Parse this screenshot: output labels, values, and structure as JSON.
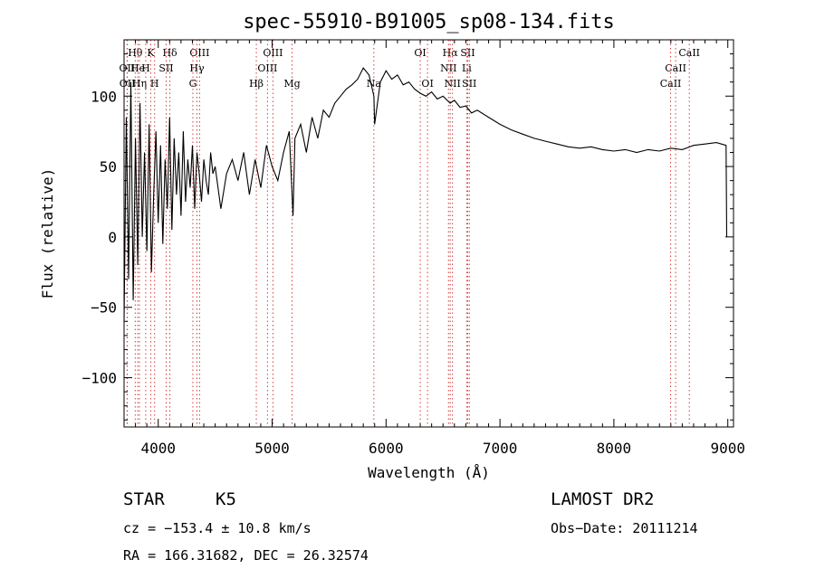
{
  "chart_data": {
    "type": "line",
    "title": "spec-55910-B91005_sp08-134.fits",
    "xlabel": "Wavelength (Å)",
    "ylabel": "Flux (relative)",
    "xlim": [
      3700,
      9050
    ],
    "ylim": [
      -135,
      140
    ],
    "xticks": [
      4000,
      5000,
      6000,
      7000,
      8000,
      9000
    ],
    "yticks": [
      -100,
      -50,
      0,
      50,
      100
    ],
    "grid": false,
    "line_color": "#000000",
    "marker_color": "#d04040",
    "series": [
      {
        "x": [
          3700,
          3720,
          3740,
          3760,
          3780,
          3800,
          3820,
          3840,
          3860,
          3880,
          3900,
          3920,
          3940,
          3960,
          3980,
          4000,
          4020,
          4040,
          4060,
          4080,
          4100,
          4120,
          4140,
          4160,
          4180,
          4200,
          4220,
          4240,
          4260,
          4280,
          4300,
          4320,
          4340,
          4360,
          4380,
          4400,
          4420,
          4440,
          4460,
          4480,
          4500,
          4550,
          4600,
          4650,
          4700,
          4750,
          4800,
          4850,
          4900,
          4950,
          5000,
          5050,
          5100,
          5150,
          5183,
          5200,
          5250,
          5300,
          5350,
          5400,
          5450,
          5500,
          5550,
          5600,
          5650,
          5700,
          5750,
          5800,
          5850,
          5893,
          5900,
          5950,
          6000,
          6050,
          6100,
          6150,
          6200,
          6250,
          6300,
          6350,
          6400,
          6450,
          6500,
          6563,
          6600,
          6650,
          6700,
          6750,
          6800,
          6900,
          7000,
          7100,
          7200,
          7300,
          7400,
          7500,
          7600,
          7700,
          7800,
          7900,
          8000,
          8100,
          8200,
          8300,
          8400,
          8500,
          8600,
          8700,
          8800,
          8900,
          8985,
          8990
        ],
        "y": [
          -60,
          85,
          -30,
          110,
          -45,
          70,
          -20,
          95,
          0,
          60,
          -10,
          80,
          -25,
          30,
          75,
          10,
          65,
          -5,
          55,
          20,
          85,
          5,
          70,
          30,
          60,
          15,
          75,
          25,
          55,
          35,
          65,
          20,
          60,
          45,
          25,
          55,
          40,
          30,
          60,
          45,
          50,
          20,
          45,
          55,
          40,
          60,
          30,
          55,
          35,
          65,
          50,
          40,
          60,
          75,
          15,
          70,
          80,
          60,
          85,
          70,
          90,
          85,
          95,
          100,
          105,
          108,
          112,
          120,
          115,
          100,
          80,
          110,
          118,
          112,
          115,
          108,
          110,
          105,
          102,
          100,
          103,
          98,
          100,
          95,
          97,
          92,
          93,
          88,
          90,
          85,
          80,
          76,
          73,
          70,
          68,
          66,
          64,
          63,
          64,
          62,
          61,
          62,
          60,
          62,
          61,
          63,
          62,
          65,
          66,
          67,
          65,
          0
        ]
      }
    ],
    "line_markers": [
      {
        "label": "Hθ",
        "x": 3798,
        "row": 1
      },
      {
        "label": "K",
        "x": 3934,
        "row": 1
      },
      {
        "label": "Hδ",
        "x": 4102,
        "row": 1
      },
      {
        "label": "OIII",
        "x": 4363,
        "row": 1
      },
      {
        "label": "OIII",
        "x": 5007,
        "row": 1
      },
      {
        "label": "OI",
        "x": 6300,
        "row": 1
      },
      {
        "label": "Hα",
        "x": 6563,
        "row": 1
      },
      {
        "label": "SII",
        "x": 6717,
        "row": 1
      },
      {
        "label": "CaII",
        "x": 8662,
        "row": 1
      },
      {
        "label": "OII",
        "x": 3727,
        "row": 2
      },
      {
        "label": "He",
        "x": 3820,
        "row": 2
      },
      {
        "label": "H",
        "x": 3890,
        "row": 2
      },
      {
        "label": "SII",
        "x": 4070,
        "row": 2
      },
      {
        "label": "Hγ",
        "x": 4340,
        "row": 2
      },
      {
        "label": "OIII",
        "x": 4959,
        "row": 2
      },
      {
        "label": "NII",
        "x": 6548,
        "row": 2
      },
      {
        "label": "Li",
        "x": 6708,
        "row": 2
      },
      {
        "label": "CaII",
        "x": 8542,
        "row": 2
      },
      {
        "label": "OII",
        "x": 3729,
        "row": 3
      },
      {
        "label": "Hη",
        "x": 3835,
        "row": 3
      },
      {
        "label": "H",
        "x": 3968,
        "row": 3
      },
      {
        "label": "G",
        "x": 4304,
        "row": 3
      },
      {
        "label": "Hβ",
        "x": 4861,
        "row": 3
      },
      {
        "label": "Mg",
        "x": 5175,
        "row": 3
      },
      {
        "label": "Na",
        "x": 5893,
        "row": 3
      },
      {
        "label": "OI",
        "x": 6364,
        "row": 3
      },
      {
        "label": "NII",
        "x": 6583,
        "row": 3
      },
      {
        "label": "SII",
        "x": 6731,
        "row": 3
      },
      {
        "label": "CaII",
        "x": 8498,
        "row": 3
      }
    ]
  },
  "info": {
    "object_class": "STAR",
    "subclass": "K5",
    "survey": "LAMOST DR2",
    "cz": "cz = −153.4 ± 10.8 km/s",
    "obs_date": "Obs−Date: 20111214",
    "coords": "RA = 166.31682, DEC =  26.32574"
  }
}
